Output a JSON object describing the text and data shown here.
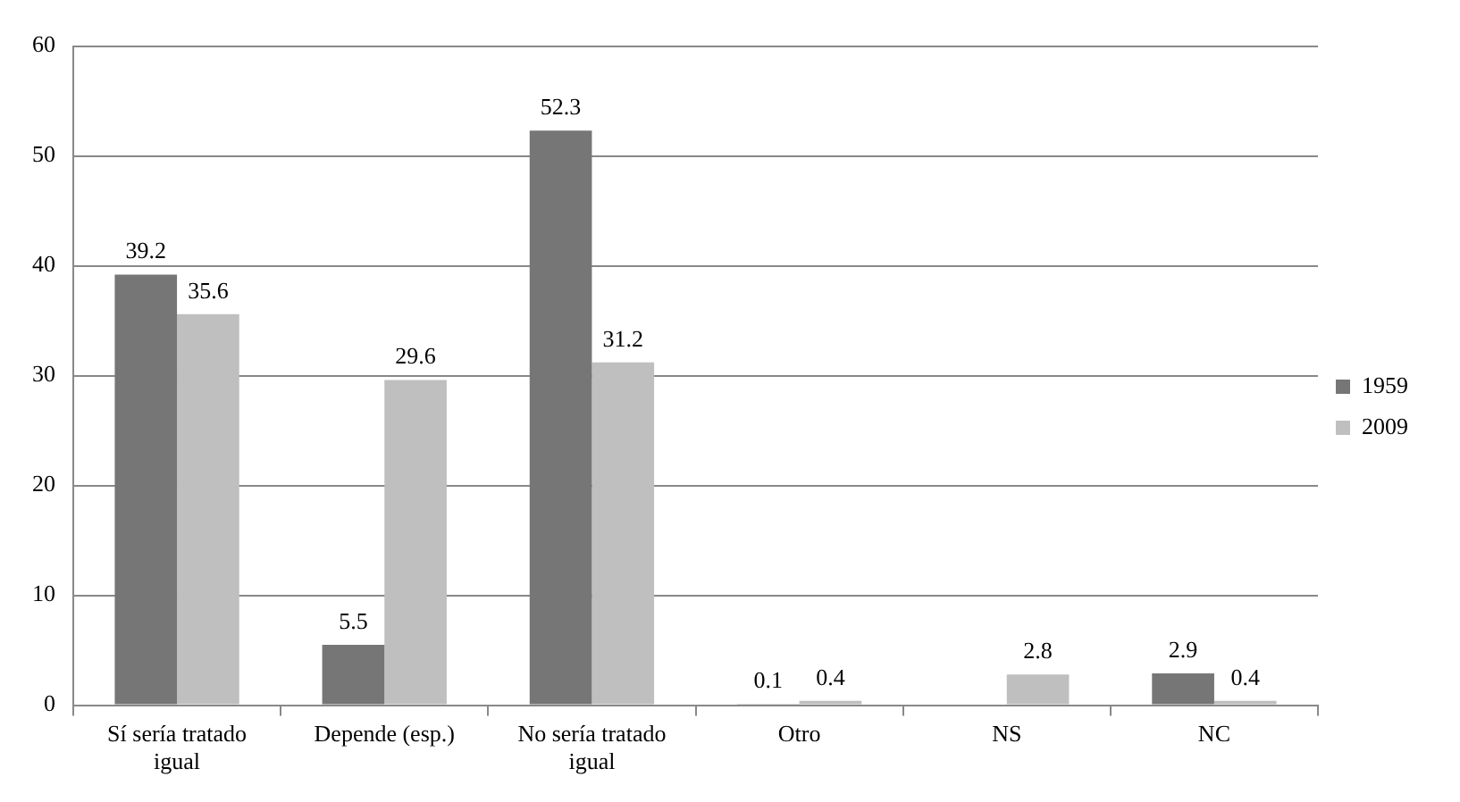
{
  "chart_data": {
    "type": "bar",
    "categories": [
      "Sí sería tratado igual",
      "Depende (esp.)",
      "No sería tratado igual",
      "Otro",
      "NS",
      "NC"
    ],
    "series": [
      {
        "name": "1959",
        "color": "#767676",
        "values": [
          39.2,
          5.5,
          52.3,
          0.1,
          null,
          2.9
        ]
      },
      {
        "name": "2009",
        "color": "#bfbfbf",
        "values": [
          35.6,
          29.6,
          31.2,
          0.4,
          2.8,
          0.4
        ]
      }
    ],
    "ylim": [
      0,
      60
    ],
    "yticks": [
      0,
      10,
      20,
      30,
      40,
      50,
      60
    ],
    "grid": "y",
    "legend": "right",
    "data_labels": true
  }
}
